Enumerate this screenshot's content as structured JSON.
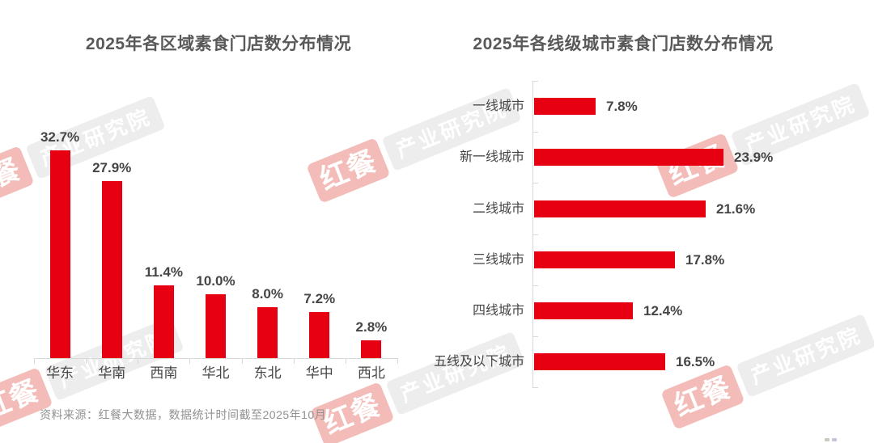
{
  "chart_data": [
    {
      "id": "region-distribution",
      "type": "bar",
      "orientation": "vertical",
      "title": "2025年各区域素食门店数分布情况",
      "categories": [
        "华东",
        "华南",
        "西南",
        "华北",
        "东北",
        "华中",
        "西北"
      ],
      "values": [
        32.7,
        27.9,
        11.4,
        10.0,
        8.0,
        7.2,
        2.8
      ],
      "value_suffix": "%",
      "ylim": [
        0,
        35
      ],
      "grid": false,
      "legend": "none",
      "bar_color": "#e60012"
    },
    {
      "id": "city-tier-distribution",
      "type": "bar",
      "orientation": "horizontal",
      "title": "2025年各线级城市素食门店数分布情况",
      "categories": [
        "一线城市",
        "新一线城市",
        "二线城市",
        "三线城市",
        "四线城市",
        "五线及以下城市"
      ],
      "values": [
        7.8,
        23.9,
        21.6,
        17.8,
        12.4,
        16.5
      ],
      "value_suffix": "%",
      "xlim": [
        0,
        25
      ],
      "grid": false,
      "legend": "none",
      "bar_color": "#e60012"
    }
  ],
  "source_note": "资料来源：红餐大数据，数据统计时间截至2025年10月",
  "watermark": {
    "brand": "红餐",
    "org": "产业研究院",
    "brand_bg": "#f3bcb8",
    "org_bg": "#ededed",
    "text_color": "#ffffff"
  },
  "colors": {
    "bar": "#e60012",
    "axis": "#d9d9d9",
    "title": "#595959",
    "label": "#454545",
    "source": "#919191"
  }
}
